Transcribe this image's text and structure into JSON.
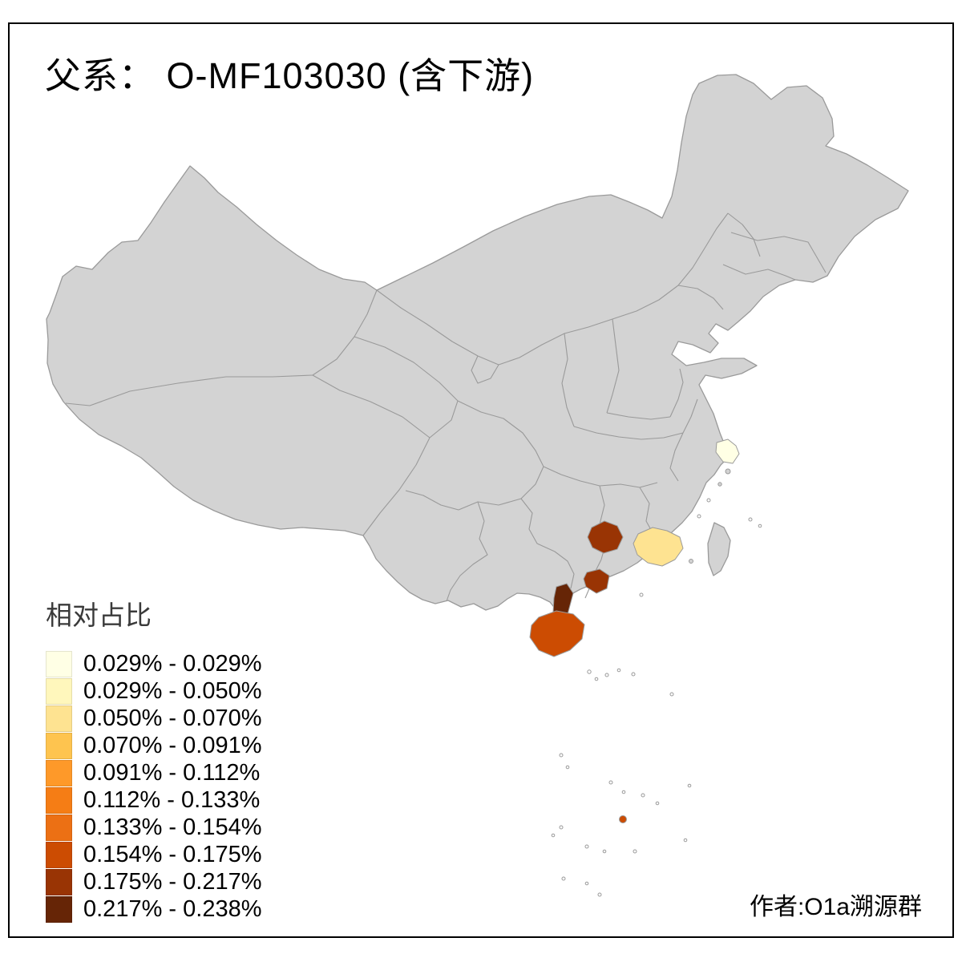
{
  "title": "父系：  O-MF103030 (含下游)",
  "author": "作者:O1a溯源群",
  "legend": {
    "title": "相对占比",
    "items": [
      {
        "label": "0.029% - 0.029%",
        "color": "#ffffe5"
      },
      {
        "label": "0.029% - 0.050%",
        "color": "#fff7bc"
      },
      {
        "label": "0.050% - 0.070%",
        "color": "#fee391"
      },
      {
        "label": "0.070% - 0.091%",
        "color": "#fec44f"
      },
      {
        "label": "0.091% - 0.112%",
        "color": "#fe9929"
      },
      {
        "label": "0.112% - 0.133%",
        "color": "#f57d15"
      },
      {
        "label": "0.133% - 0.154%",
        "color": "#ec7014"
      },
      {
        "label": "0.154% - 0.175%",
        "color": "#cc4c02"
      },
      {
        "label": "0.175% - 0.217%",
        "color": "#993404"
      },
      {
        "label": "0.217% - 0.238%",
        "color": "#662506"
      }
    ]
  },
  "map": {
    "base_color": "#d3d3d3",
    "border_color": "#9a9a9a",
    "regions": [
      {
        "id": "shanghai",
        "color": "#ffffe5",
        "range": "0.029% - 0.029%"
      },
      {
        "id": "guangdong",
        "color": "#fee391",
        "range": "0.050% - 0.070%"
      },
      {
        "id": "guangxi-north",
        "color": "#993404",
        "range": "0.175% - 0.217%"
      },
      {
        "id": "guangxi-south",
        "color": "#993404",
        "range": "0.175% - 0.217%"
      },
      {
        "id": "leizhou",
        "color": "#662506",
        "range": "0.217% - 0.238%"
      },
      {
        "id": "hainan",
        "color": "#cc4c02",
        "range": "0.154% - 0.175%"
      },
      {
        "id": "south-sea-island",
        "color": "#cc4c02",
        "range": "0.154% - 0.175%"
      }
    ]
  }
}
